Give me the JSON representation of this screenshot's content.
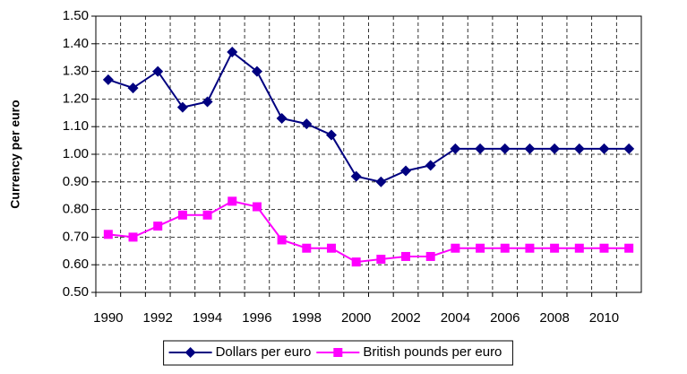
{
  "chart_data": {
    "type": "line",
    "y_label": "Currency per euro",
    "categories": [
      "1990",
      null,
      "1992",
      null,
      "1994",
      null,
      "1996",
      null,
      "1998",
      null,
      "2000",
      null,
      "2002",
      null,
      "2004",
      null,
      "2006",
      null,
      "2008",
      null,
      "2010",
      null
    ],
    "series": [
      {
        "name": "Dollars per euro",
        "color": "#000080",
        "marker": "diamond",
        "values": [
          1.27,
          1.24,
          1.3,
          1.17,
          1.19,
          1.37,
          1.3,
          1.13,
          1.11,
          1.07,
          0.92,
          0.9,
          0.94,
          0.96,
          1.02,
          1.02,
          1.02,
          1.02,
          1.02,
          1.02,
          1.02,
          1.02
        ]
      },
      {
        "name": "British pounds per euro",
        "color": "#ff00ff",
        "marker": "square",
        "values": [
          0.71,
          0.7,
          0.74,
          0.78,
          0.78,
          0.83,
          0.81,
          0.69,
          0.66,
          0.66,
          0.61,
          0.62,
          0.63,
          0.63,
          0.66,
          0.66,
          0.66,
          0.66,
          0.66,
          0.66,
          0.66,
          0.66
        ]
      }
    ],
    "ylim": [
      0.5,
      1.5
    ],
    "yticks": [
      {
        "value": 0.5,
        "label": "0.50"
      },
      {
        "value": 0.6,
        "label": "0.60"
      },
      {
        "value": 0.7,
        "label": "0.70"
      },
      {
        "value": 0.8,
        "label": "0.80"
      },
      {
        "value": 0.9,
        "label": "0.90"
      },
      {
        "value": 1.0,
        "label": "1.00"
      },
      {
        "value": 1.1,
        "label": "1.10"
      },
      {
        "value": 1.2,
        "label": "1.20"
      },
      {
        "value": 1.3,
        "label": "1.30"
      },
      {
        "value": 1.4,
        "label": "1.40"
      },
      {
        "value": 1.5,
        "label": "1.50"
      }
    ],
    "grid": true,
    "legend": "bottom"
  }
}
